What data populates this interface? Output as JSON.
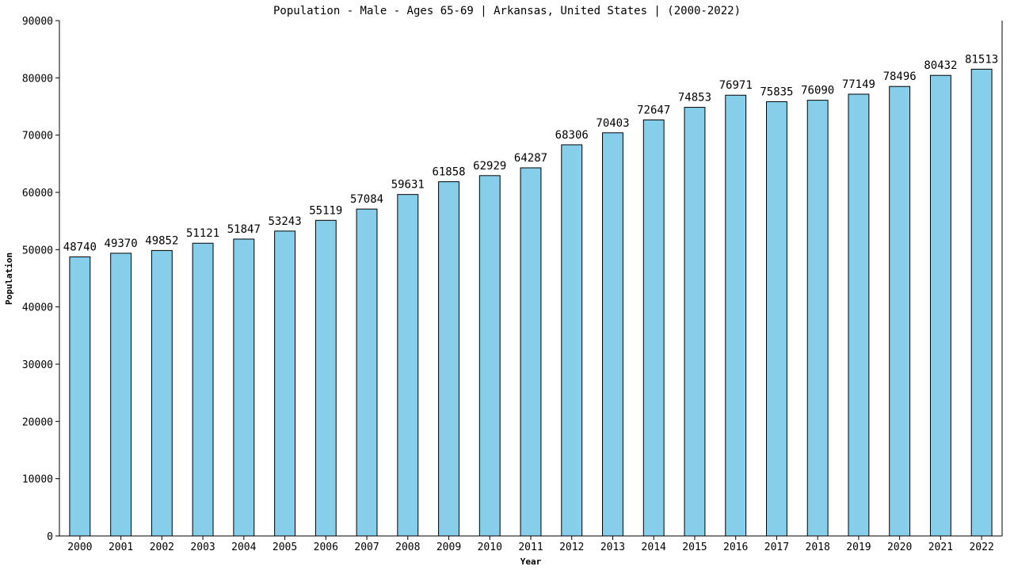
{
  "chart_data": {
    "type": "bar",
    "title": "Population - Male - Ages 65-69 | Arkansas, United States |  (2000-2022)",
    "xlabel": "Year",
    "ylabel": "Population",
    "ylim": [
      0,
      90000
    ],
    "yticks": [
      0,
      10000,
      20000,
      30000,
      40000,
      50000,
      60000,
      70000,
      80000,
      90000
    ],
    "categories": [
      "2000",
      "2001",
      "2002",
      "2003",
      "2004",
      "2005",
      "2006",
      "2007",
      "2008",
      "2009",
      "2010",
      "2011",
      "2012",
      "2013",
      "2014",
      "2015",
      "2016",
      "2017",
      "2018",
      "2019",
      "2020",
      "2021",
      "2022"
    ],
    "series": [
      {
        "values": [
          48740,
          49370,
          49852,
          51121,
          51847,
          53243,
          55119,
          57084,
          59631,
          61858,
          62929,
          64287,
          68306,
          70403,
          72647,
          74853,
          76971,
          75835,
          76090,
          77149,
          78496,
          80432,
          81513
        ],
        "color": "#87ceeb"
      }
    ],
    "grid": false,
    "legend": "none",
    "data_labels": true
  }
}
